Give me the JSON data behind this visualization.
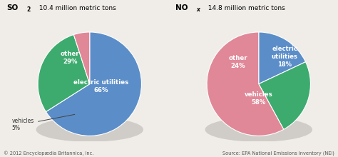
{
  "so2_values": [
    66,
    29,
    5
  ],
  "so2_colors": [
    "#5b8dc8",
    "#3daa6e",
    "#e08898"
  ],
  "nox_values": [
    18,
    24,
    58
  ],
  "nox_colors": [
    "#5b8dc8",
    "#3daa6e",
    "#e08898"
  ],
  "shadow_color": "#d0cdc8",
  "bg_color": "#f0ede8",
  "footer_left": "© 2012 Encyclopædia Britannica, Inc.",
  "footer_right": "Source: EPA National Emissions Inventory (NEI)"
}
